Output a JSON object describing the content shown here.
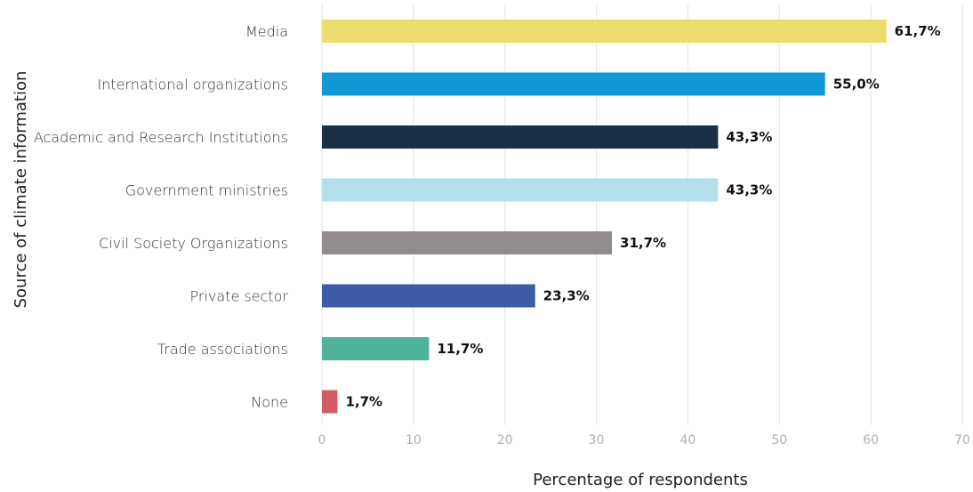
{
  "chart_data": {
    "type": "bar",
    "orientation": "horizontal",
    "title": "",
    "xlabel": "Percentage of respondents",
    "ylabel": "Source of climate information",
    "xlim": [
      0,
      70
    ],
    "xticks": [
      0,
      10,
      20,
      30,
      40,
      50,
      60,
      70
    ],
    "grid": "vertical",
    "categories": [
      "Media",
      "International organizations",
      "Academic and Research Institutions",
      "Government ministries",
      "Civil Society Organizations",
      "Private sector",
      "Trade associations",
      "None"
    ],
    "values": [
      61.7,
      55.0,
      43.3,
      43.3,
      31.7,
      23.3,
      11.7,
      1.7
    ],
    "value_labels": [
      "61,7%",
      "55,0%",
      "43,3%",
      "43,3%",
      "31,7%",
      "23,3%",
      "11,7%",
      "1,7%"
    ],
    "colors": [
      "#ecdc6c",
      "#1199d6",
      "#1b2f47",
      "#b3dfec",
      "#918c8b",
      "#3c5ca8",
      "#4db39a",
      "#d45b62"
    ]
  }
}
